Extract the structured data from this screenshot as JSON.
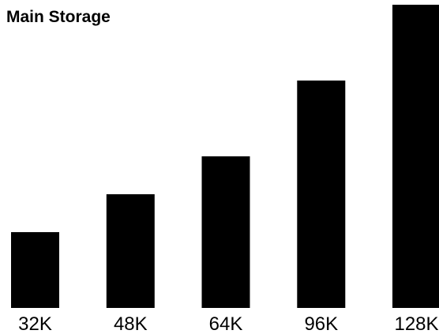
{
  "chart_data": {
    "type": "bar",
    "title": "Main Storage",
    "xlabel": "",
    "ylabel": "",
    "categories": [
      "32K",
      "48K",
      "64K",
      "96K",
      "128K"
    ],
    "values": [
      32,
      48,
      64,
      96,
      128
    ],
    "ylim": [
      0,
      128
    ],
    "grid": false,
    "legend": "none",
    "bar_color": "#000000"
  }
}
